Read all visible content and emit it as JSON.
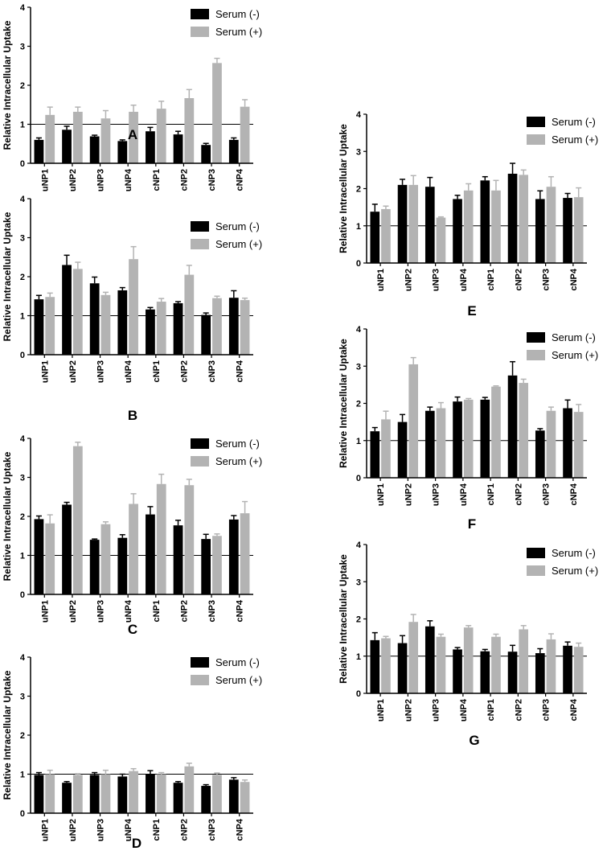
{
  "figure": {
    "colors": {
      "serum_minus": "#000000",
      "serum_plus": "#b3b3b3",
      "axis": "#000000"
    }
  },
  "chart_data": [
    {
      "type": "bar",
      "panel_label": "A",
      "ylabel": "Relative Intracellular Uptake",
      "ylim": [
        0,
        4
      ],
      "yticks": [
        0,
        1,
        2,
        3,
        4
      ],
      "reference_line": 1,
      "categories": [
        "uNP1",
        "uNP2",
        "uNP3",
        "uNP4",
        "cNP1",
        "cNP2",
        "cNP3",
        "cNP4"
      ],
      "series": [
        {
          "name": "Serum (-)",
          "values": [
            0.6,
            0.86,
            0.69,
            0.57,
            0.82,
            0.74,
            0.47,
            0.6
          ],
          "errors": [
            0.05,
            0.09,
            0.03,
            0.03,
            0.1,
            0.08,
            0.04,
            0.05
          ]
        },
        {
          "name": "Serum (+)",
          "values": [
            1.24,
            1.32,
            1.15,
            1.32,
            1.4,
            1.67,
            2.57,
            1.45
          ],
          "errors": [
            0.2,
            0.12,
            0.2,
            0.17,
            0.19,
            0.22,
            0.12,
            0.18
          ]
        }
      ]
    },
    {
      "type": "bar",
      "panel_label": "B",
      "ylabel": "Relative Intracellular Uptake",
      "ylim": [
        0,
        4
      ],
      "yticks": [
        0,
        1,
        2,
        3,
        4
      ],
      "reference_line": 1,
      "categories": [
        "uNP1",
        "uNP2",
        "uNP3",
        "uNP4",
        "cNP1",
        "cNP2",
        "cNP3",
        "cNP4"
      ],
      "series": [
        {
          "name": "Serum (-)",
          "values": [
            1.42,
            2.3,
            1.83,
            1.65,
            1.16,
            1.32,
            1.02,
            1.46
          ],
          "errors": [
            0.1,
            0.25,
            0.16,
            0.07,
            0.05,
            0.04,
            0.05,
            0.18
          ]
        },
        {
          "name": "Serum (+)",
          "values": [
            1.48,
            2.2,
            1.53,
            2.45,
            1.36,
            2.05,
            1.45,
            1.4
          ],
          "errors": [
            0.1,
            0.17,
            0.07,
            0.32,
            0.08,
            0.24,
            0.05,
            0.05
          ]
        }
      ]
    },
    {
      "type": "bar",
      "panel_label": "C",
      "ylabel": "Relative Intracellular Uptake",
      "ylim": [
        0,
        4
      ],
      "yticks": [
        0,
        1,
        2,
        3,
        4
      ],
      "reference_line": 1,
      "categories": [
        "uNP1",
        "uNP2",
        "uNP3",
        "uNP4",
        "cNP1",
        "cNP2",
        "cNP3",
        "cNP4"
      ],
      "series": [
        {
          "name": "Serum (-)",
          "values": [
            1.93,
            2.3,
            1.4,
            1.45,
            2.05,
            1.77,
            1.42,
            1.92
          ],
          "errors": [
            0.08,
            0.06,
            0.02,
            0.08,
            0.2,
            0.13,
            0.12,
            0.1
          ]
        },
        {
          "name": "Serum (+)",
          "values": [
            1.82,
            3.8,
            1.8,
            2.32,
            2.83,
            2.8,
            1.5,
            2.08
          ],
          "errors": [
            0.22,
            0.1,
            0.06,
            0.26,
            0.25,
            0.15,
            0.05,
            0.3
          ]
        }
      ]
    },
    {
      "type": "bar",
      "panel_label": "D",
      "ylabel": "Relative Intracellular Uptake",
      "ylim": [
        0,
        4
      ],
      "yticks": [
        0,
        1,
        2,
        3,
        4
      ],
      "reference_line": 1,
      "categories": [
        "uNP1",
        "uNP2",
        "uNP3",
        "uNP4",
        "cNP1",
        "cNP2",
        "cNP3",
        "cNP4"
      ],
      "series": [
        {
          "name": "Serum (-)",
          "values": [
            0.98,
            0.78,
            0.98,
            0.94,
            0.99,
            0.78,
            0.7,
            0.86
          ],
          "errors": [
            0.06,
            0.03,
            0.06,
            0.06,
            0.1,
            0.03,
            0.03,
            0.05
          ]
        },
        {
          "name": "Serum (+)",
          "values": [
            1.0,
            0.98,
            1.0,
            1.08,
            1.0,
            1.2,
            0.98,
            0.8
          ],
          "errors": [
            0.1,
            0.03,
            0.1,
            0.06,
            0.04,
            0.08,
            0.05,
            0.05
          ]
        }
      ]
    },
    {
      "type": "bar",
      "panel_label": "E",
      "ylabel": "Relative Intracellular Uptake",
      "ylim": [
        0,
        4
      ],
      "yticks": [
        0,
        1,
        2,
        3,
        4
      ],
      "reference_line": 1,
      "categories": [
        "uNP1",
        "uNP2",
        "uNP3",
        "uNP4",
        "cNP1",
        "cNP2",
        "cNP3",
        "cNP4"
      ],
      "series": [
        {
          "name": "Serum (-)",
          "values": [
            1.38,
            2.1,
            2.05,
            1.72,
            2.22,
            2.4,
            1.72,
            1.75
          ],
          "errors": [
            0.2,
            0.15,
            0.25,
            0.1,
            0.1,
            0.28,
            0.22,
            0.12
          ]
        },
        {
          "name": "Serum (+)",
          "values": [
            1.45,
            2.1,
            1.22,
            1.95,
            1.95,
            2.37,
            2.05,
            1.77
          ],
          "errors": [
            0.08,
            0.25,
            0.02,
            0.18,
            0.27,
            0.13,
            0.27,
            0.25
          ]
        }
      ]
    },
    {
      "type": "bar",
      "panel_label": "F",
      "ylabel": "Relative Intracellular Uptake",
      "ylim": [
        0,
        4
      ],
      "yticks": [
        0,
        1,
        2,
        3,
        4
      ],
      "reference_line": 1,
      "categories": [
        "uNP1",
        "uNP2",
        "uNP3",
        "uNP4",
        "cNP1",
        "cNP2",
        "cNP3",
        "cNP4"
      ],
      "series": [
        {
          "name": "Serum (-)",
          "values": [
            1.25,
            1.5,
            1.8,
            2.05,
            2.1,
            2.75,
            1.27,
            1.87
          ],
          "errors": [
            0.1,
            0.2,
            0.1,
            0.12,
            0.06,
            0.37,
            0.05,
            0.22
          ]
        },
        {
          "name": "Serum (+)",
          "values": [
            1.57,
            3.05,
            1.87,
            2.1,
            2.45,
            2.55,
            1.8,
            1.77
          ],
          "errors": [
            0.22,
            0.18,
            0.15,
            0.03,
            0.02,
            0.1,
            0.1,
            0.2
          ]
        }
      ]
    },
    {
      "type": "bar",
      "panel_label": "G",
      "ylabel": "Relative Intracellular Uptake",
      "ylim": [
        0,
        4
      ],
      "yticks": [
        0,
        1,
        2,
        3,
        4
      ],
      "reference_line": 1,
      "categories": [
        "uNP1",
        "uNP2",
        "uNP3",
        "uNP4",
        "cNP1",
        "cNP2",
        "cNP3",
        "cNP4"
      ],
      "series": [
        {
          "name": "Serum (-)",
          "values": [
            1.43,
            1.35,
            1.8,
            1.18,
            1.13,
            1.12,
            1.08,
            1.28
          ],
          "errors": [
            0.2,
            0.2,
            0.15,
            0.05,
            0.05,
            0.17,
            0.12,
            0.1
          ]
        },
        {
          "name": "Serum (+)",
          "values": [
            1.48,
            1.92,
            1.52,
            1.77,
            1.52,
            1.72,
            1.45,
            1.25
          ],
          "errors": [
            0.05,
            0.2,
            0.07,
            0.05,
            0.07,
            0.1,
            0.15,
            0.1
          ]
        }
      ]
    }
  ]
}
